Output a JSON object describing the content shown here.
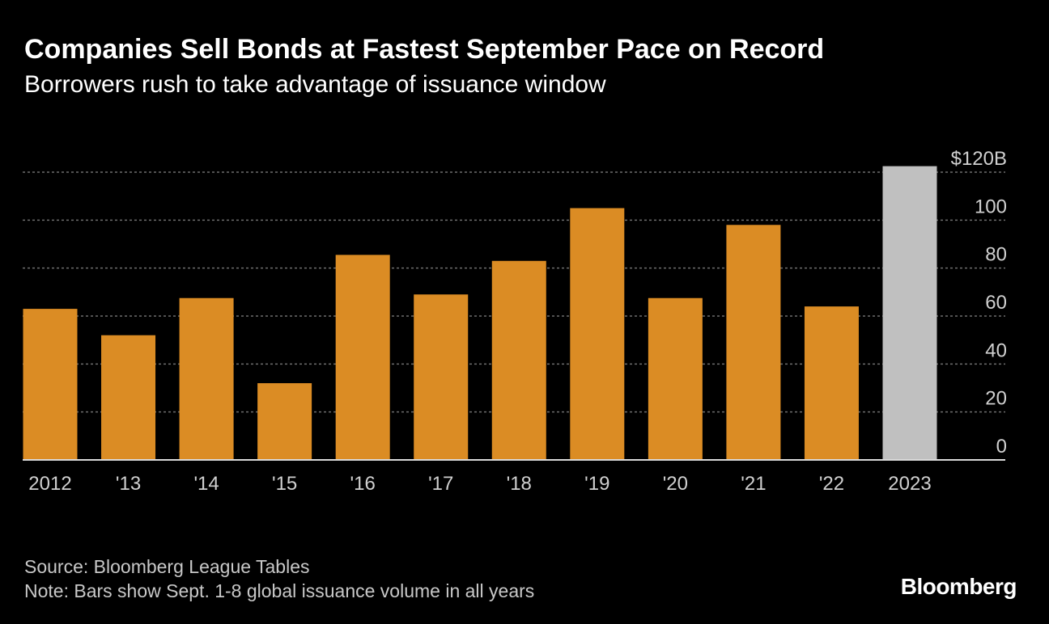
{
  "header": {
    "title": "Companies Sell Bonds at Fastest September Pace on Record",
    "subtitle": "Borrowers rush to take advantage of issuance window"
  },
  "footer": {
    "source": "Source: Bloomberg League Tables",
    "note": "Note: Bars show Sept. 1-8 global issuance volume in all years",
    "brand": "Bloomberg"
  },
  "colors": {
    "bar": "#db8c24",
    "highlight_bar": "#c0c0c0",
    "gridline": "#6e6e6e",
    "baseline": "#d9d9d9"
  },
  "chart_data": {
    "type": "bar",
    "title": "Companies Sell Bonds at Fastest September Pace on Record",
    "subtitle": "Borrowers rush to take advantage of issuance window",
    "categories": [
      "2012",
      "'13",
      "'14",
      "'15",
      "'16",
      "'17",
      "'18",
      "'19",
      "'20",
      "'21",
      "'22",
      "2023"
    ],
    "values": [
      63,
      52,
      67.5,
      32,
      85.5,
      69,
      83,
      105,
      67.5,
      98,
      64,
      122.5
    ],
    "highlight_index": 11,
    "ylim": [
      0,
      120
    ],
    "y_ticks": [
      {
        "value": 0,
        "label": "0"
      },
      {
        "value": 20,
        "label": "20"
      },
      {
        "value": 40,
        "label": "40"
      },
      {
        "value": 60,
        "label": "60"
      },
      {
        "value": 80,
        "label": "80"
      },
      {
        "value": 100,
        "label": "100"
      },
      {
        "value": 120,
        "label": "$120B"
      }
    ],
    "y_axis_position": "right",
    "grid": true,
    "xlabel": "",
    "ylabel": ""
  }
}
